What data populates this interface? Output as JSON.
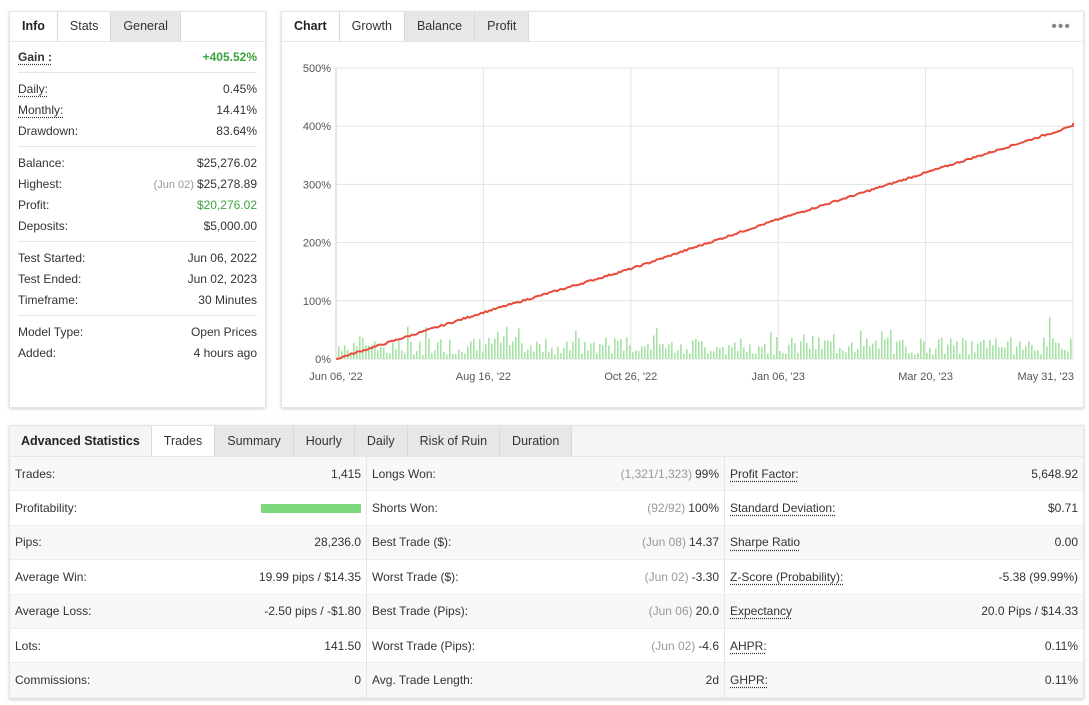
{
  "info_panel": {
    "tabs": [
      {
        "label": "Info"
      },
      {
        "label": "Stats"
      },
      {
        "label": "General"
      }
    ],
    "gain": {
      "label": "Gain :",
      "value": "+405.52%"
    },
    "daily": {
      "label": "Daily:",
      "value": "0.45%"
    },
    "monthly": {
      "label": "Monthly:",
      "value": "14.41%"
    },
    "drawdown": {
      "label": "Drawdown:",
      "value": "83.64%"
    },
    "balance": {
      "label": "Balance:",
      "value": "$25,276.02"
    },
    "highest": {
      "label": "Highest:",
      "date": "(Jun 02)",
      "value": "$25,278.89"
    },
    "profit": {
      "label": "Profit:",
      "value": "$20,276.02"
    },
    "deposits": {
      "label": "Deposits:",
      "value": "$5,000.00"
    },
    "test_started": {
      "label": "Test Started:",
      "value": "Jun 06, 2022"
    },
    "test_ended": {
      "label": "Test Ended:",
      "value": "Jun 02, 2023"
    },
    "timeframe": {
      "label": "Timeframe:",
      "value": "30 Minutes"
    },
    "model_type": {
      "label": "Model Type:",
      "value": "Open Prices"
    },
    "added": {
      "label": "Added:",
      "value": "4 hours ago"
    }
  },
  "chart_panel": {
    "tabs": [
      {
        "label": "Chart"
      },
      {
        "label": "Growth"
      },
      {
        "label": "Balance"
      },
      {
        "label": "Profit"
      }
    ],
    "menu_icon": "more-dots-icon"
  },
  "chart_data": {
    "type": "line",
    "x_ticks": [
      "Jun 06, '22",
      "Aug 16, '22",
      "Oct 26, '22",
      "Jan 06, '23",
      "Mar 20, '23",
      "May 31, '23"
    ],
    "y_ticks": [
      "0%",
      "100%",
      "200%",
      "300%",
      "400%",
      "500%"
    ],
    "ylim": [
      0,
      500
    ],
    "grid": true,
    "series": [
      {
        "color": "#e74c3c",
        "x": [
          "Jun 06, '22",
          "Aug 16, '22",
          "Oct 26, '22",
          "Jan 06, '23",
          "Mar 20, '23",
          "May 31, '23",
          "Jun 02, '23"
        ],
        "values": [
          0,
          80,
          155,
          240,
          320,
          400,
          405.52
        ]
      }
    ],
    "bars_color": "#a5e3a5"
  },
  "advanced": {
    "tabs": [
      {
        "label": "Advanced Statistics"
      },
      {
        "label": "Trades"
      },
      {
        "label": "Summary"
      },
      {
        "label": "Hourly"
      },
      {
        "label": "Daily"
      },
      {
        "label": "Risk of Ruin"
      },
      {
        "label": "Duration"
      }
    ],
    "col1": [
      {
        "label": "Trades:",
        "value": "1,415"
      },
      {
        "label": "Profitability:",
        "value": "",
        "profitability_fraction": 0.99
      },
      {
        "label": "Pips:",
        "value": "28,236.0"
      },
      {
        "label": "Average Win:",
        "value": "19.99 pips / $14.35"
      },
      {
        "label": "Average Loss:",
        "value": "-2.50 pips / -$1.80"
      },
      {
        "label": "Lots:",
        "value": "141.50"
      },
      {
        "label": "Commissions:",
        "value": "0"
      }
    ],
    "col2": [
      {
        "label": "Longs Won:",
        "pre": "(1,321/1,323)",
        "value": "99%"
      },
      {
        "label": "Shorts Won:",
        "pre": "(92/92)",
        "value": "100%"
      },
      {
        "label": "Best Trade ($):",
        "pre": "(Jun 08)",
        "value": "14.37"
      },
      {
        "label": "Worst Trade ($):",
        "pre": "(Jun 02)",
        "value": "-3.30"
      },
      {
        "label": "Best Trade (Pips):",
        "pre": "(Jun 06)",
        "value": "20.0"
      },
      {
        "label": "Worst Trade (Pips):",
        "pre": "(Jun 02)",
        "value": "-4.6"
      },
      {
        "label": "Avg. Trade Length:",
        "pre": "",
        "value": "2d"
      }
    ],
    "col3": [
      {
        "label": "Profit Factor:",
        "value": "5,648.92"
      },
      {
        "label": "Standard Deviation:",
        "value": "$0.71"
      },
      {
        "label": "Sharpe Ratio",
        "value": "0.00"
      },
      {
        "label": "Z-Score (Probability):",
        "value": "-5.38 (99.99%)"
      },
      {
        "label": "Expectancy",
        "value": "20.0 Pips / $14.33"
      },
      {
        "label": "AHPR:",
        "value": "0.11%"
      },
      {
        "label": "GHPR:",
        "value": "0.11%"
      }
    ]
  }
}
